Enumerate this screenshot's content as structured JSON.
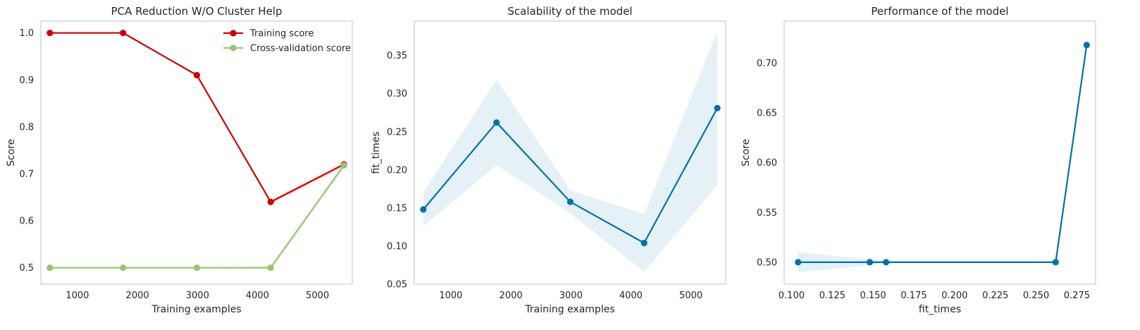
{
  "chart_data": [
    {
      "type": "line",
      "title": "PCA Reduction W/O Cluster Help",
      "xlabel": "Training examples",
      "ylabel": "Score",
      "xlim": [
        390,
        5580
      ],
      "ylim": [
        0.465,
        1.025
      ],
      "xticks": [
        1000,
        2000,
        3000,
        4000,
        5000
      ],
      "yticks": [
        0.5,
        0.6,
        0.7,
        0.8,
        0.9,
        1.0
      ],
      "ytick_decimals": 1,
      "grid": false,
      "legend": "top-right",
      "series": [
        {
          "name": "Training score",
          "color": "#cc0000",
          "x": [
            540,
            1760,
            2990,
            4220,
            5440
          ],
          "y": [
            1.0,
            1.0,
            0.91,
            0.64,
            0.72
          ],
          "lower": [
            1.0,
            1.0,
            0.91,
            0.635,
            0.714
          ],
          "upper": [
            1.0,
            1.0,
            0.91,
            0.645,
            0.726
          ]
        },
        {
          "name": "Cross-validation score",
          "color": "#99c473",
          "x": [
            540,
            1760,
            2990,
            4220,
            5440
          ],
          "y": [
            0.5,
            0.5,
            0.5,
            0.5,
            0.718
          ],
          "lower": [
            0.5,
            0.5,
            0.5,
            0.494,
            0.712
          ],
          "upper": [
            0.5,
            0.5,
            0.5,
            0.506,
            0.724
          ]
        }
      ]
    },
    {
      "type": "line",
      "title": "Scalability of the model",
      "xlabel": "Training examples",
      "ylabel": "fit_times",
      "xlim": [
        390,
        5580
      ],
      "ylim": [
        0.05,
        0.395
      ],
      "xticks": [
        1000,
        2000,
        3000,
        4000,
        5000
      ],
      "yticks": [
        0.05,
        0.1,
        0.15,
        0.2,
        0.25,
        0.3,
        0.35
      ],
      "ytick_decimals": 2,
      "grid": false,
      "series": [
        {
          "color": "#0072a8",
          "x": [
            540,
            1760,
            2990,
            4220,
            5440
          ],
          "y": [
            0.148,
            0.262,
            0.158,
            0.104,
            0.281
          ],
          "lower": [
            0.126,
            0.206,
            0.143,
            0.066,
            0.18
          ],
          "upper": [
            0.17,
            0.318,
            0.173,
            0.142,
            0.382
          ]
        }
      ]
    },
    {
      "type": "line",
      "title": "Performance of the model",
      "xlabel": "fit_times",
      "ylabel": "Score",
      "xlim": [
        0.0955,
        0.2865
      ],
      "ylim": [
        0.478,
        0.742
      ],
      "xticks": [
        0.1,
        0.125,
        0.15,
        0.175,
        0.2,
        0.225,
        0.25,
        0.275
      ],
      "xtick_decimals": 3,
      "yticks": [
        0.5,
        0.55,
        0.6,
        0.65,
        0.7
      ],
      "ytick_decimals": 2,
      "grid": false,
      "series": [
        {
          "color": "#0072a8",
          "x": [
            0.104,
            0.148,
            0.158,
            0.262,
            0.281
          ],
          "y": [
            0.5,
            0.5,
            0.5,
            0.5,
            0.718
          ],
          "lower": [
            0.49,
            0.497,
            0.5,
            0.5,
            0.712
          ],
          "upper": [
            0.51,
            0.503,
            0.5,
            0.5,
            0.724
          ]
        }
      ]
    }
  ]
}
